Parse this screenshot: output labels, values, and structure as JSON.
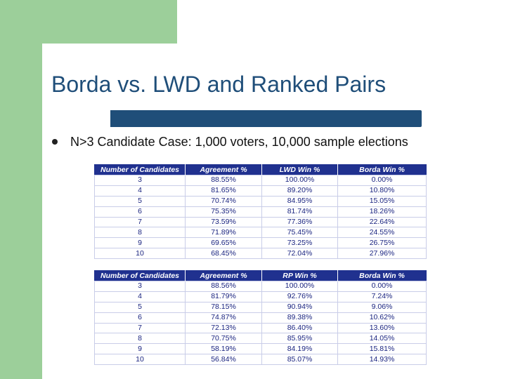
{
  "slide": {
    "title": "Borda vs. LWD and Ranked Pairs",
    "bullet": "N>3 Candidate Case: 1,000 voters, 10,000 sample elections"
  },
  "table1": {
    "headers": [
      "Number of Candidates",
      "Agreement %",
      "LWD Win %",
      "Borda Win %"
    ],
    "rows": [
      [
        "3",
        "88.55%",
        "100.00%",
        "0.00%"
      ],
      [
        "4",
        "81.65%",
        "89.20%",
        "10.80%"
      ],
      [
        "5",
        "70.74%",
        "84.95%",
        "15.05%"
      ],
      [
        "6",
        "75.35%",
        "81.74%",
        "18.26%"
      ],
      [
        "7",
        "73.59%",
        "77.36%",
        "22.64%"
      ],
      [
        "8",
        "71.89%",
        "75.45%",
        "24.55%"
      ],
      [
        "9",
        "69.65%",
        "73.25%",
        "26.75%"
      ],
      [
        "10",
        "68.45%",
        "72.04%",
        "27.96%"
      ]
    ]
  },
  "table2": {
    "headers": [
      "Number of Candidates",
      "Agreement %",
      "RP Win %",
      "Borda Win %"
    ],
    "rows": [
      [
        "3",
        "88.56%",
        "100.00%",
        "0.00%"
      ],
      [
        "4",
        "81.79%",
        "92.76%",
        "7.24%"
      ],
      [
        "5",
        "78.15%",
        "90.94%",
        "9.06%"
      ],
      [
        "6",
        "74.87%",
        "89.38%",
        "10.62%"
      ],
      [
        "7",
        "72.13%",
        "86.40%",
        "13.60%"
      ],
      [
        "8",
        "70.75%",
        "85.95%",
        "14.05%"
      ],
      [
        "9",
        "58.19%",
        "84.19%",
        "15.81%"
      ],
      [
        "10",
        "56.84%",
        "85.07%",
        "14.93%"
      ]
    ]
  },
  "colors": {
    "accent": "#1f4e79",
    "sidebar": "#9ccf9a",
    "table_header": "#20318f",
    "table_text": "#1a2480"
  }
}
